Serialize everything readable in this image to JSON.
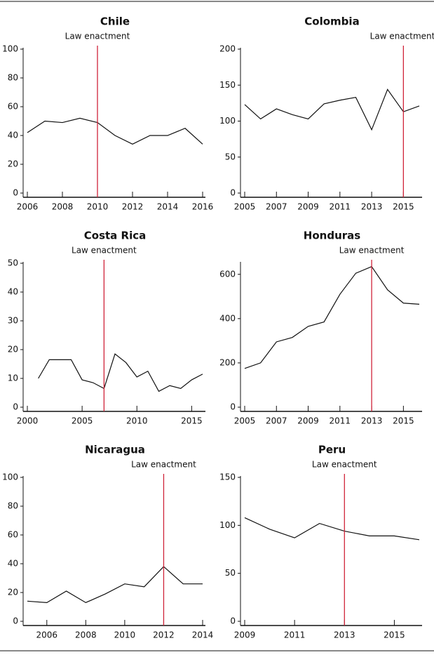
{
  "chart_data": [
    {
      "type": "line",
      "title": "Chile",
      "annotation": "Law enactment",
      "vline_x": 2010,
      "vline_color": "#d0243a",
      "color": "#111111",
      "x": [
        2006,
        2007,
        2008,
        2009,
        2010,
        2011,
        2012,
        2013,
        2014,
        2015,
        2016
      ],
      "values": [
        42,
        50,
        49,
        52,
        49,
        40,
        34,
        40,
        40,
        45,
        34
      ],
      "xlim": [
        2006,
        2016
      ],
      "ylim": [
        0,
        100
      ],
      "xticks": [
        2006,
        2008,
        2010,
        2012,
        2014,
        2016
      ],
      "yticks": [
        0,
        20,
        40,
        60,
        80,
        100
      ]
    },
    {
      "type": "line",
      "title": "Colombia",
      "annotation": "Law enactment",
      "vline_x": 2015,
      "vline_color": "#d0243a",
      "color": "#111111",
      "x": [
        2005,
        2006,
        2007,
        2008,
        2009,
        2010,
        2011,
        2012,
        2013,
        2014,
        2015,
        2016
      ],
      "values": [
        123,
        103,
        117,
        109,
        103,
        124,
        129,
        133,
        88,
        144,
        113,
        121
      ],
      "xlim": [
        2005,
        2016
      ],
      "ylim": [
        0,
        200
      ],
      "xticks": [
        2005,
        2007,
        2009,
        2011,
        2013,
        2015
      ],
      "yticks": [
        0,
        50,
        100,
        150,
        200
      ]
    },
    {
      "type": "line",
      "title": "Costa Rica",
      "annotation": "Law enactment",
      "vline_x": 2007,
      "vline_color": "#d0243a",
      "color": "#111111",
      "x": [
        2001,
        2002,
        2003,
        2004,
        2005,
        2006,
        2007,
        2008,
        2009,
        2010,
        2011,
        2012,
        2013,
        2014,
        2015,
        2016
      ],
      "values": [
        10,
        16.5,
        16.5,
        16.5,
        9.5,
        8.5,
        6.5,
        18.5,
        15.5,
        10.5,
        12.5,
        5.5,
        7.5,
        6.5,
        9.5,
        11.5
      ],
      "xlim": [
        2000,
        2016
      ],
      "ylim": [
        0,
        50
      ],
      "xticks": [
        2000,
        2005,
        2010,
        2015
      ],
      "yticks": [
        0,
        10,
        20,
        30,
        40,
        50
      ]
    },
    {
      "type": "line",
      "title": "Honduras",
      "annotation": "Law enactment",
      "vline_x": 2013,
      "vline_color": "#d0243a",
      "color": "#111111",
      "x": [
        2005,
        2006,
        2007,
        2008,
        2009,
        2010,
        2011,
        2012,
        2013,
        2014,
        2015,
        2016
      ],
      "values": [
        175,
        200,
        295,
        315,
        365,
        385,
        510,
        605,
        635,
        530,
        470,
        465
      ],
      "xlim": [
        2005,
        2016
      ],
      "ylim": [
        0,
        650
      ],
      "xticks": [
        2005,
        2007,
        2009,
        2011,
        2013,
        2015
      ],
      "yticks": [
        0,
        200,
        400,
        600
      ]
    },
    {
      "type": "line",
      "title": "Nicaragua",
      "annotation": "Law enactment",
      "vline_x": 2012,
      "vline_color": "#d0243a",
      "color": "#111111",
      "x": [
        2005,
        2006,
        2007,
        2008,
        2009,
        2010,
        2011,
        2012,
        2013,
        2014
      ],
      "values": [
        14,
        13,
        21,
        13,
        19,
        26,
        24,
        38,
        26,
        26
      ],
      "xlim": [
        2005,
        2014
      ],
      "ylim": [
        0,
        100
      ],
      "xticks": [
        2006,
        2008,
        2010,
        2012,
        2014
      ],
      "yticks": [
        0,
        20,
        40,
        60,
        80,
        100
      ]
    },
    {
      "type": "line",
      "title": "Peru",
      "annotation": "Law enactment",
      "vline_x": 2013,
      "vline_color": "#d0243a",
      "color": "#111111",
      "x": [
        2009,
        2010,
        2011,
        2012,
        2013,
        2014,
        2015,
        2016
      ],
      "values": [
        108,
        96,
        87,
        102,
        94,
        89,
        89,
        85
      ],
      "xlim": [
        2009,
        2016
      ],
      "ylim": [
        0,
        150
      ],
      "xticks": [
        2009,
        2011,
        2013,
        2015
      ],
      "yticks": [
        0,
        50,
        100,
        150
      ]
    }
  ]
}
